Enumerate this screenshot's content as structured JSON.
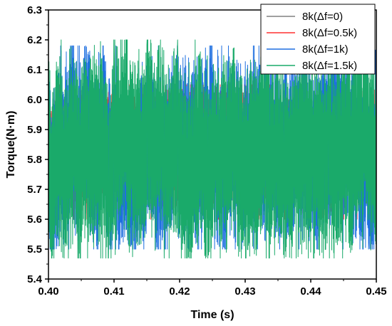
{
  "chart_data": {
    "type": "line",
    "title": "",
    "xlabel": "Time (s)",
    "ylabel": "Torque(N·m)",
    "xlim": [
      0.4,
      0.45
    ],
    "ylim": [
      5.4,
      6.3
    ],
    "x_ticks": [
      "0.40",
      "0.41",
      "0.42",
      "0.43",
      "0.44",
      "0.45"
    ],
    "y_ticks": [
      "5.4",
      "5.5",
      "5.6",
      "5.7",
      "5.8",
      "5.9",
      "6.0",
      "6.1",
      "6.2",
      "6.3"
    ],
    "grid": false,
    "legend_position": "top-right",
    "series": [
      {
        "name": "8k(Δf=0)",
        "color": "#808080",
        "mean": 5.84,
        "min": 5.67,
        "max": 6.0,
        "seed": 11
      },
      {
        "name": "8k(Δf=0.5k)",
        "color": "#ff3030",
        "mean": 5.84,
        "min": 5.6,
        "max": 6.05,
        "seed": 23
      },
      {
        "name": "8k(Δf=1k)",
        "color": "#1e6fe0",
        "mean": 5.83,
        "min": 5.5,
        "max": 6.18,
        "seed": 37
      },
      {
        "name": "8k(Δf=1.5k)",
        "color": "#1aaa6a",
        "mean": 5.83,
        "min": 5.47,
        "max": 6.2,
        "seed": 53
      }
    ]
  }
}
